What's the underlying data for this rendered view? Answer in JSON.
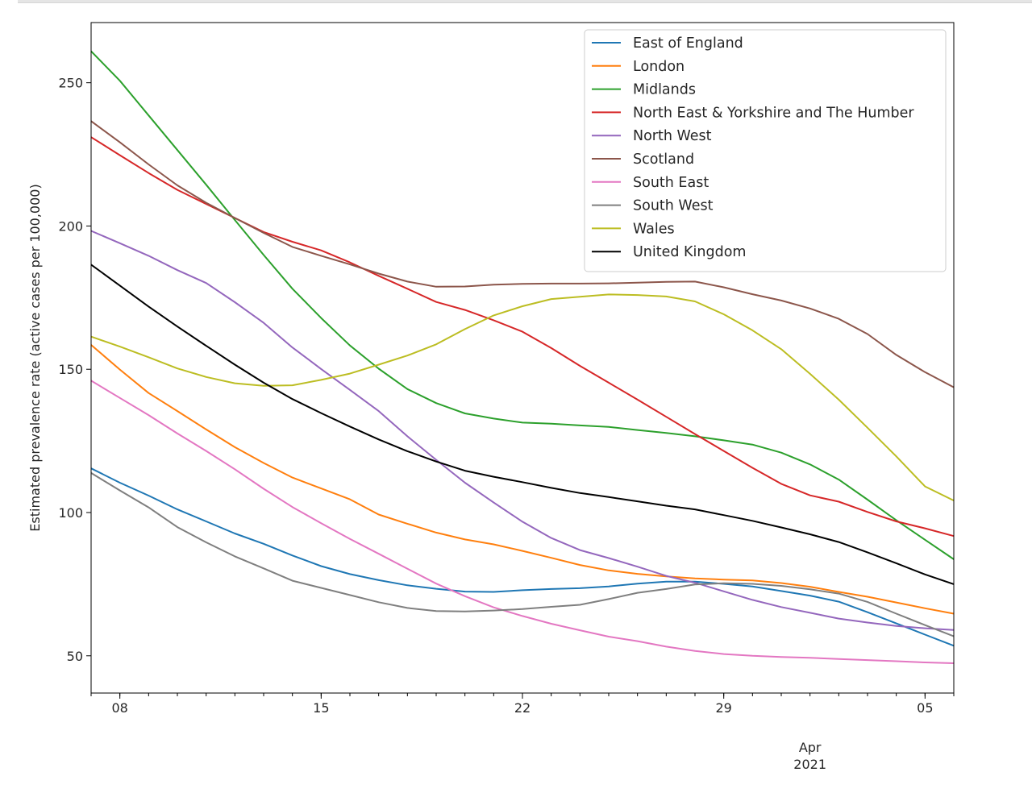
{
  "chart_data": {
    "type": "line",
    "title": "",
    "xlabel": "",
    "ylabel": "Estimated prevalence rate (active cases per 100,000)",
    "x_ticks": [
      "08",
      "15",
      "22",
      "29",
      "05"
    ],
    "x_ticks_dates": [
      "2021-03-08",
      "2021-03-15",
      "2021-03-22",
      "2021-03-29",
      "2021-04-05"
    ],
    "x_minor_label": [
      "Apr",
      "2021"
    ],
    "xlim": [
      "2021-03-07",
      "2021-04-06"
    ],
    "ylim": [
      37,
      271
    ],
    "y_ticks": [
      50,
      100,
      150,
      200,
      250
    ],
    "grid": false,
    "legend_position": "top-right",
    "x": [
      "2021-03-07",
      "2021-03-08",
      "2021-03-09",
      "2021-03-10",
      "2021-03-11",
      "2021-03-12",
      "2021-03-13",
      "2021-03-14",
      "2021-03-15",
      "2021-03-16",
      "2021-03-17",
      "2021-03-18",
      "2021-03-19",
      "2021-03-20",
      "2021-03-21",
      "2021-03-22",
      "2021-03-23",
      "2021-03-24",
      "2021-03-25",
      "2021-03-26",
      "2021-03-27",
      "2021-03-28",
      "2021-03-29",
      "2021-03-30",
      "2021-03-31",
      "2021-04-01",
      "2021-04-02",
      "2021-04-03",
      "2021-04-04",
      "2021-04-05",
      "2021-04-06"
    ],
    "series": [
      {
        "name": "East of England",
        "color": "#1f77b4",
        "values": [
          115.4,
          110.4,
          105.9,
          101.1,
          96.9,
          92.7,
          89.1,
          85.0,
          81.3,
          78.5,
          76.4,
          74.6,
          73.4,
          72.4,
          72.3,
          72.9,
          73.3,
          73.6,
          74.2,
          75.2,
          75.9,
          75.9,
          75.1,
          74.2,
          72.6,
          71.0,
          68.9,
          65.2,
          61.3,
          57.4,
          53.5
        ]
      },
      {
        "name": "London",
        "color": "#ff7f0e",
        "values": [
          158.5,
          149.9,
          141.7,
          135.4,
          129.0,
          122.8,
          117.3,
          112.2,
          108.4,
          104.6,
          99.3,
          96.1,
          93.0,
          90.6,
          88.9,
          86.6,
          84.2,
          81.7,
          79.8,
          78.6,
          77.7,
          77.0,
          76.6,
          76.3,
          75.4,
          74.1,
          72.3,
          70.6,
          68.6,
          66.6,
          64.7
        ]
      },
      {
        "name": "Midlands",
        "color": "#2ca02c",
        "values": [
          261.0,
          250.7,
          238.6,
          226.5,
          214.4,
          202.1,
          189.9,
          178.1,
          167.9,
          158.3,
          150.2,
          143.1,
          138.2,
          134.6,
          132.8,
          131.4,
          131.0,
          130.4,
          129.9,
          128.8,
          127.8,
          126.6,
          125.2,
          123.7,
          120.9,
          116.8,
          111.5,
          104.5,
          97.3,
          90.5,
          83.7
        ]
      },
      {
        "name": "North East & Yorkshire and The Humber",
        "color": "#d62728",
        "values": [
          231.0,
          224.7,
          218.5,
          212.6,
          207.7,
          202.8,
          197.9,
          194.5,
          191.5,
          187.3,
          182.6,
          178.1,
          173.5,
          170.7,
          167.1,
          163.1,
          157.4,
          151.2,
          145.3,
          139.4,
          133.4,
          127.4,
          121.5,
          115.6,
          110.0,
          106.0,
          103.8,
          100.2,
          96.9,
          94.5,
          91.8
        ]
      },
      {
        "name": "North West",
        "color": "#9467bd",
        "values": [
          198.3,
          194.0,
          189.6,
          184.6,
          180.1,
          173.4,
          166.2,
          157.6,
          150.1,
          142.8,
          135.4,
          126.6,
          118.4,
          110.4,
          103.5,
          96.8,
          91.1,
          86.9,
          84.1,
          81.1,
          77.9,
          75.5,
          72.5,
          69.5,
          67.0,
          65.0,
          63.0,
          61.6,
          60.4,
          59.6,
          59.0
        ]
      },
      {
        "name": "Scotland",
        "color": "#8c564b",
        "values": [
          236.6,
          229.2,
          221.5,
          214.2,
          208.1,
          202.8,
          197.6,
          192.7,
          189.6,
          186.6,
          183.4,
          180.6,
          178.8,
          178.9,
          179.5,
          179.8,
          179.9,
          179.9,
          180.0,
          180.2,
          180.5,
          180.6,
          178.6,
          176.2,
          174.0,
          171.2,
          167.6,
          162.3,
          155.0,
          149.0,
          143.7
        ]
      },
      {
        "name": "South East",
        "color": "#e377c2",
        "values": [
          146.0,
          140.0,
          134.0,
          127.6,
          121.5,
          115.1,
          108.3,
          101.9,
          96.3,
          90.8,
          85.6,
          80.4,
          75.2,
          70.8,
          66.9,
          63.9,
          61.2,
          58.9,
          56.7,
          55.1,
          53.2,
          51.7,
          50.6,
          50.0,
          49.6,
          49.3,
          48.9,
          48.5,
          48.1,
          47.7,
          47.4
        ]
      },
      {
        "name": "South West",
        "color": "#7f7f7f",
        "values": [
          113.8,
          107.7,
          101.8,
          94.9,
          89.6,
          84.7,
          80.5,
          76.2,
          73.7,
          71.2,
          68.7,
          66.7,
          65.6,
          65.5,
          65.8,
          66.3,
          67.1,
          67.8,
          69.8,
          72.0,
          73.3,
          74.9,
          75.3,
          75.1,
          74.4,
          73.2,
          71.7,
          68.8,
          64.7,
          60.7,
          56.8
        ]
      },
      {
        "name": "Wales",
        "color": "#bcbd22",
        "values": [
          161.4,
          157.9,
          154.2,
          150.3,
          147.3,
          145.1,
          144.2,
          144.4,
          146.3,
          148.5,
          151.6,
          154.8,
          158.7,
          164.0,
          168.8,
          172.0,
          174.5,
          175.3,
          176.1,
          175.9,
          175.4,
          173.7,
          169.2,
          163.6,
          157.0,
          148.4,
          139.4,
          129.6,
          119.6,
          109.1,
          104.2
        ]
      },
      {
        "name": "United Kingdom",
        "color": "#000000",
        "values": [
          186.5,
          179.2,
          171.9,
          164.9,
          158.2,
          151.6,
          145.3,
          139.6,
          134.7,
          130.0,
          125.5,
          121.4,
          117.8,
          114.6,
          112.5,
          110.6,
          108.6,
          106.8,
          105.4,
          103.9,
          102.4,
          101.1,
          99.1,
          97.1,
          94.8,
          92.4,
          89.7,
          86.1,
          82.3,
          78.4,
          75.0
        ]
      }
    ]
  }
}
